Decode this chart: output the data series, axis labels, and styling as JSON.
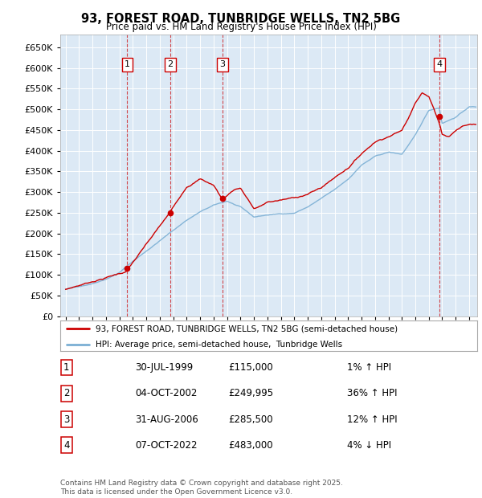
{
  "title": "93, FOREST ROAD, TUNBRIDGE WELLS, TN2 5BG",
  "subtitle": "Price paid vs. HM Land Registry's House Price Index (HPI)",
  "bg_color": "#dce9f5",
  "sale_color": "#cc0000",
  "hpi_color": "#7bafd4",
  "ylim": [
    0,
    680000
  ],
  "yticks": [
    0,
    50000,
    100000,
    150000,
    200000,
    250000,
    300000,
    350000,
    400000,
    450000,
    500000,
    550000,
    600000,
    650000
  ],
  "xlim_start": 1994.6,
  "xlim_end": 2025.6,
  "sales": [
    {
      "date_num": 1999.58,
      "price": 115000,
      "label": "1"
    },
    {
      "date_num": 2002.76,
      "price": 249995,
      "label": "2"
    },
    {
      "date_num": 2006.67,
      "price": 285500,
      "label": "3"
    },
    {
      "date_num": 2022.77,
      "price": 483000,
      "label": "4"
    }
  ],
  "table_rows": [
    {
      "num": "1",
      "date": "30-JUL-1999",
      "price": "£115,000",
      "change": "1% ↑ HPI"
    },
    {
      "num": "2",
      "date": "04-OCT-2002",
      "price": "£249,995",
      "change": "36% ↑ HPI"
    },
    {
      "num": "3",
      "date": "31-AUG-2006",
      "price": "£285,500",
      "change": "12% ↑ HPI"
    },
    {
      "num": "4",
      "date": "07-OCT-2022",
      "price": "£483,000",
      "change": "4% ↓ HPI"
    }
  ],
  "legend_entries": [
    "93, FOREST ROAD, TUNBRIDGE WELLS, TN2 5BG (semi-detached house)",
    "HPI: Average price, semi-detached house,  Tunbridge Wells"
  ],
  "footer": "Contains HM Land Registry data © Crown copyright and database right 2025.\nThis data is licensed under the Open Government Licence v3.0.",
  "hpi_anchors_x": [
    1995,
    1996,
    1997,
    1998,
    1999,
    2000,
    2001,
    2002,
    2003,
    2004,
    2005,
    2006,
    2007,
    2008,
    2009,
    2010,
    2011,
    2012,
    2013,
    2014,
    2015,
    2016,
    2017,
    2018,
    2019,
    2020,
    2021,
    2022,
    2022.77,
    2023,
    2024,
    2025
  ],
  "hpi_anchors_y": [
    65000,
    72000,
    80000,
    92000,
    108000,
    135000,
    160000,
    185000,
    210000,
    235000,
    255000,
    270000,
    280000,
    265000,
    240000,
    245000,
    248000,
    250000,
    265000,
    285000,
    305000,
    330000,
    365000,
    385000,
    395000,
    390000,
    435000,
    495000,
    502000,
    465000,
    480000,
    505000
  ],
  "prop_anchors_x": [
    1995,
    1999.58,
    1999.58,
    2002.76,
    2002.76,
    2004.0,
    2005.0,
    2006.0,
    2006.67,
    2006.67,
    2007.5,
    2008.0,
    2008.5,
    2009.0,
    2009.5,
    2010,
    2011,
    2012,
    2013,
    2014,
    2015,
    2016,
    2017,
    2018,
    2019,
    2020,
    2020.5,
    2021,
    2021.5,
    2022,
    2022.77,
    2022.77,
    2023,
    2023.5,
    2024,
    2024.5,
    2025
  ],
  "prop_anchors_y": [
    65000,
    112000,
    115000,
    249995,
    249995,
    315000,
    335000,
    320000,
    285500,
    285500,
    310000,
    315000,
    290000,
    265000,
    270000,
    280000,
    285000,
    290000,
    300000,
    315000,
    340000,
    365000,
    400000,
    430000,
    445000,
    460000,
    490000,
    530000,
    555000,
    545000,
    483000,
    483000,
    455000,
    450000,
    465000,
    475000,
    480000
  ]
}
